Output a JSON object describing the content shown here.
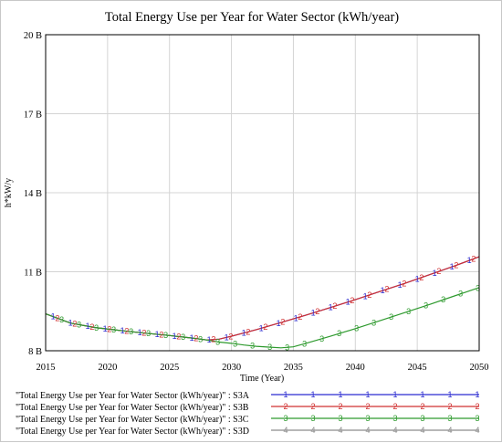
{
  "chart_data": {
    "type": "line",
    "title": "Total Energy Use per Year for Water Sector (kWh/year)",
    "xlabel": "Time (Year)",
    "ylabel": "h*kW/y",
    "xlim": [
      2015,
      2050
    ],
    "ylim": [
      8,
      20
    ],
    "x_ticks": [
      2015,
      2020,
      2025,
      2030,
      2035,
      2040,
      2045,
      2050
    ],
    "x_tick_labels": [
      "2015",
      "2020",
      "2025",
      "2030",
      "2035",
      "2040",
      "2045",
      "2050"
    ],
    "y_ticks": [
      8,
      11,
      14,
      17,
      20
    ],
    "y_tick_labels": [
      "8 B",
      "11 B",
      "14 B",
      "17 B",
      "20 B"
    ],
    "grid": true,
    "legend_position": "bottom",
    "series": [
      {
        "name": "\"Total Energy Use per Year for Water Sector (kWh/year)\" : S3A",
        "marker": "1",
        "color": "#2b2bd0",
        "x": [
          2015,
          2017,
          2019,
          2021,
          2023,
          2025,
          2027,
          2028,
          2029,
          2030,
          2032,
          2034,
          2036,
          2038,
          2040,
          2042,
          2044,
          2046,
          2048,
          2050
        ],
        "y": [
          9.4,
          9.05,
          8.88,
          8.77,
          8.67,
          8.58,
          8.47,
          8.41,
          8.44,
          8.55,
          8.8,
          9.07,
          9.35,
          9.64,
          9.94,
          10.25,
          10.56,
          10.89,
          11.22,
          11.57
        ]
      },
      {
        "name": "\"Total Energy Use per Year for Water Sector (kWh/year)\" : S3B",
        "marker": "2",
        "color": "#d03030",
        "x": [
          2015,
          2017,
          2019,
          2021,
          2023,
          2025,
          2027,
          2028,
          2029,
          2030,
          2032,
          2034,
          2036,
          2038,
          2040,
          2042,
          2044,
          2046,
          2048,
          2050
        ],
        "y": [
          9.4,
          9.05,
          8.88,
          8.77,
          8.67,
          8.58,
          8.47,
          8.41,
          8.44,
          8.55,
          8.8,
          9.07,
          9.35,
          9.64,
          9.94,
          10.25,
          10.56,
          10.89,
          11.22,
          11.57
        ]
      },
      {
        "name": "\"Total Energy Use per Year for Water Sector (kWh/year)\" : S3C",
        "marker": "3",
        "color": "#2e9a2e",
        "x": [
          2015,
          2017,
          2019,
          2021,
          2023,
          2025,
          2027,
          2028,
          2029,
          2030,
          2031,
          2032,
          2033,
          2034,
          2035,
          2036,
          2038,
          2040,
          2042,
          2044,
          2046,
          2048,
          2050
        ],
        "y": [
          9.4,
          9.05,
          8.88,
          8.77,
          8.67,
          8.58,
          8.47,
          8.41,
          8.33,
          8.28,
          8.22,
          8.17,
          8.14,
          8.11,
          8.15,
          8.28,
          8.55,
          8.84,
          9.14,
          9.45,
          9.76,
          10.08,
          10.4
        ]
      },
      {
        "name": "\"Total Energy Use per Year for Water Sector (kWh/year)\" : S3D",
        "marker": "4",
        "color": "#8c8c8c",
        "x": [],
        "y": []
      }
    ]
  }
}
